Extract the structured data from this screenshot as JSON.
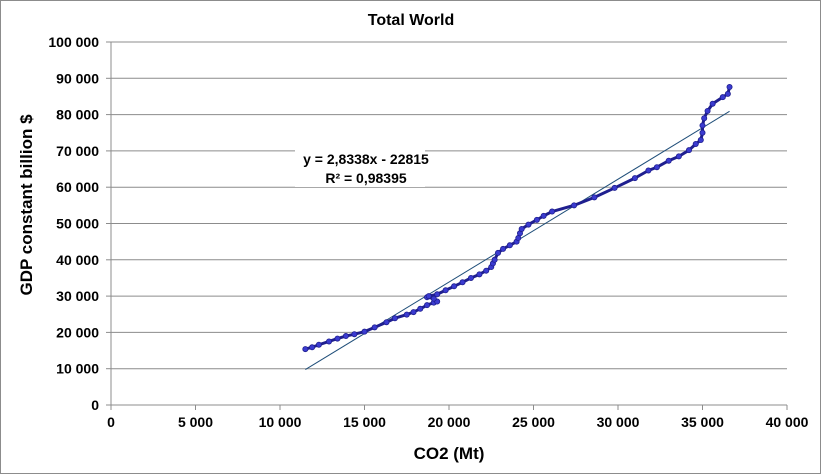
{
  "chart_data": {
    "type": "scatter",
    "title": "Total World",
    "xlabel": "CO2 (Mt)",
    "ylabel": "GDP constant billion $",
    "xlim": [
      0,
      40000
    ],
    "ylim": [
      0,
      100000
    ],
    "x_ticks": [
      "0",
      "5 000",
      "10 000",
      "15 000",
      "20 000",
      "25 000",
      "30 000",
      "35 000",
      "40 000"
    ],
    "y_ticks": [
      "0",
      "10 000",
      "20 000",
      "30 000",
      "40 000",
      "50 000",
      "60 000",
      "70 000",
      "80 000",
      "90 000",
      "100 000"
    ],
    "grid": "horizontal",
    "colors": {
      "series": "#1f1f8f",
      "marker": "#3b3bd0",
      "trendline": "#1f4e79",
      "grid": "#8c8c8c"
    },
    "series": [
      {
        "name": "Total World",
        "points": [
          [
            11500,
            15400
          ],
          [
            11900,
            15900
          ],
          [
            12300,
            16600
          ],
          [
            12900,
            17500
          ],
          [
            13400,
            18300
          ],
          [
            13900,
            19000
          ],
          [
            14400,
            19500
          ],
          [
            15000,
            20200
          ],
          [
            15600,
            21400
          ],
          [
            16300,
            22800
          ],
          [
            16800,
            23900
          ],
          [
            17500,
            24900
          ],
          [
            17900,
            25600
          ],
          [
            18300,
            26500
          ],
          [
            18700,
            27500
          ],
          [
            19100,
            28200
          ],
          [
            19300,
            28500
          ],
          [
            19100,
            29300
          ],
          [
            18700,
            29700
          ],
          [
            18800,
            30000
          ],
          [
            19300,
            30500
          ],
          [
            19800,
            31600
          ],
          [
            20300,
            32700
          ],
          [
            20800,
            33800
          ],
          [
            21300,
            35000
          ],
          [
            21800,
            36000
          ],
          [
            22200,
            37000
          ],
          [
            22500,
            38000
          ],
          [
            22600,
            39000
          ],
          [
            22700,
            40000
          ],
          [
            22900,
            41900
          ],
          [
            23200,
            43000
          ],
          [
            23600,
            44000
          ],
          [
            24000,
            45000
          ],
          [
            24100,
            46000
          ],
          [
            24200,
            47300
          ],
          [
            24300,
            48500
          ],
          [
            24700,
            49700
          ],
          [
            25200,
            51000
          ],
          [
            25600,
            52100
          ],
          [
            26100,
            53300
          ],
          [
            27400,
            55000
          ],
          [
            28600,
            57200
          ],
          [
            29800,
            59800
          ],
          [
            31000,
            62500
          ],
          [
            31800,
            64600
          ],
          [
            32300,
            65500
          ],
          [
            33000,
            67300
          ],
          [
            33600,
            68500
          ],
          [
            34200,
            70200
          ],
          [
            34600,
            71900
          ],
          [
            34900,
            73000
          ],
          [
            35000,
            75000
          ],
          [
            35000,
            77000
          ],
          [
            35100,
            79000
          ],
          [
            35300,
            81000
          ],
          [
            35600,
            83000
          ],
          [
            36200,
            84800
          ],
          [
            36500,
            85700
          ],
          [
            36600,
            87600
          ]
        ]
      }
    ],
    "trendline": {
      "type": "linear",
      "slope": 2.8338,
      "intercept": -22815,
      "x_range": [
        11500,
        36600
      ],
      "equation": "y = 2,8338x - 22815",
      "r2": "R² = 0,98395"
    }
  }
}
